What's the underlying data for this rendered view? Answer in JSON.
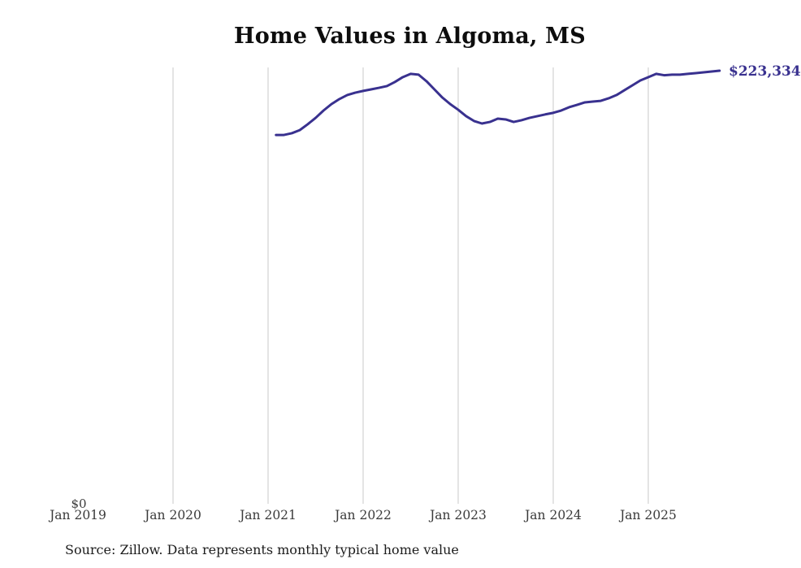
{
  "chart_data": {
    "type": "line",
    "title": "Home Values in Algoma, MS",
    "source_note": "Source: Zillow. Data represents monthly typical home value",
    "latest_value_label": "$223,334",
    "y_zero_label": "$0",
    "series_name": "Monthly typical home value",
    "line_color": "#39318f",
    "gridline_color": "#c9c9c9",
    "axis_label_color": "#3a3a3a",
    "x_axis": {
      "start_year": 2019,
      "tick_labels": [
        "Jan 2019",
        "Jan 2020",
        "Jan 2021",
        "Jan 2022",
        "Jan 2023",
        "Jan 2024",
        "Jan 2025"
      ],
      "gridline_years": [
        2020,
        2021,
        2022,
        2023,
        2024,
        2025
      ]
    },
    "ylim": [
      0,
      225000
    ],
    "grid": "vertical-only",
    "legend": "none",
    "x": [
      "Feb 2021",
      "Mar 2021",
      "Apr 2021",
      "May 2021",
      "Jun 2021",
      "Jul 2021",
      "Aug 2021",
      "Sep 2021",
      "Oct 2021",
      "Nov 2021",
      "Dec 2021",
      "Jan 2022",
      "Feb 2022",
      "Mar 2022",
      "Apr 2022",
      "May 2022",
      "Jun 2022",
      "Jul 2022",
      "Aug 2022",
      "Sep 2022",
      "Oct 2022",
      "Nov 2022",
      "Dec 2022",
      "Jan 2023",
      "Feb 2023",
      "Mar 2023",
      "Apr 2023",
      "May 2023",
      "Jun 2023",
      "Jul 2023",
      "Aug 2023",
      "Sep 2023",
      "Oct 2023",
      "Nov 2023",
      "Dec 2023",
      "Jan 2024",
      "Feb 2024",
      "Mar 2024",
      "Apr 2024",
      "May 2024",
      "Jun 2024",
      "Jul 2024",
      "Aug 2024",
      "Sep 2024",
      "Oct 2024",
      "Nov 2024",
      "Dec 2024",
      "Jan 2025",
      "Feb 2025",
      "Mar 2025",
      "Apr 2025",
      "May 2025",
      "Jun 2025",
      "Jul 2025",
      "Aug 2025",
      "Sep 2025",
      "Oct 2025"
    ],
    "values": [
      190200,
      190200,
      191100,
      192700,
      195700,
      199000,
      202800,
      206100,
      208700,
      210800,
      212000,
      212900,
      213700,
      214500,
      215400,
      217500,
      220000,
      221700,
      221300,
      217900,
      213700,
      209500,
      206100,
      203200,
      199900,
      197400,
      196100,
      196900,
      198600,
      198200,
      196900,
      197800,
      199000,
      199900,
      200800,
      201600,
      202800,
      204500,
      205700,
      207000,
      207400,
      207800,
      209100,
      210800,
      213300,
      215800,
      218300,
      220000,
      221700,
      221000,
      221300,
      221300,
      221700,
      222100,
      222500,
      222900,
      223334
    ]
  }
}
